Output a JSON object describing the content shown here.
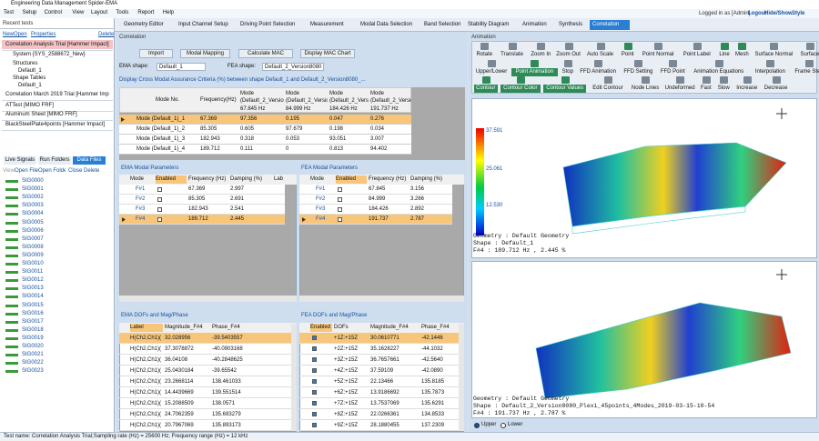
{
  "window": {
    "title": "Engineering Data Management Spider-EMA"
  },
  "menu": [
    "Test",
    "Setup",
    "Control",
    "View",
    "Layout",
    "Tools",
    "Report",
    "Help"
  ],
  "tabs": [
    "Geometry Editor",
    "Input Channel Setup",
    "Driving Point Selection",
    "Measurement",
    "Modal Data Selection",
    "Band Selection",
    "Stability Diagram",
    "Animation",
    "Synthesis",
    "ODS",
    "Correlation"
  ],
  "user": {
    "logged_in": "Logged in as [Admin]",
    "buttons": [
      "Logout",
      "Hide/Show",
      "Style"
    ]
  },
  "left": {
    "header": "Recent tests",
    "actions": [
      "New",
      "Open",
      "Properties",
      "Delete"
    ],
    "tree": [
      "Correlation Analysis Trial [Hammer Impact]",
      "System {SYS_2588672_New}",
      "Structures",
      "Default_1",
      "Shape Tables",
      "Default_1",
      "Correlation March 2019 Trial [Hammer Impact]",
      "ATTest [MIMO FRF]",
      "Aluminum Sheet [MIMO FRF]",
      "BlackSteelPlate4points [Hammer Impact]"
    ],
    "tabs": [
      "Live Signals",
      "Run Folders",
      "Data Files"
    ],
    "file_actions": [
      "View",
      "Open File",
      "Open Folder",
      "Close",
      "Delete"
    ],
    "signals": [
      "SIG0000",
      "SIG0001",
      "SIG0002",
      "SIG0003",
      "SIG0004",
      "SIG0005",
      "SIG0006",
      "SIG0007",
      "SIG0008",
      "SIG0009",
      "SIG0010",
      "SIG0011",
      "SIG0012",
      "SIG0013",
      "SIG0014",
      "SIG0015",
      "SIG0016",
      "SIG0017",
      "SIG0018",
      "SIG0019",
      "SIG0020",
      "SIG0021",
      "SIG0022",
      "SIG0023"
    ]
  },
  "correlation": {
    "header": "Correlation",
    "buttons": [
      "Import",
      "Modal Mapping",
      "Calculate MAC",
      "Display MAC Chart"
    ],
    "ema_shape_label": "EMA shape:",
    "ema_shape": "Default_1",
    "fea_shape_label": "FEA shape:",
    "fea_shape": "Default_2_Version8080",
    "mac_caption": "Display Cross Modal Assurance Criteria (%) between shape Default_1 and Default_2_Version8080_...",
    "mac_table": {
      "columns": [
        "Mode No.",
        "Frequency(Hz)",
        "Mode (Default_2_Version...",
        "Mode (Default_2_Versio...",
        "Mode (Default_2_Version...",
        "Mode (Default_2_Version..."
      ],
      "subheader": [
        "67.845 Hz",
        "84.999 Hz",
        "184.426 Hz",
        "191.737 Hz"
      ],
      "rows": [
        [
          "Mode (Default_1)_1",
          "67.369",
          "97.356",
          "0.195",
          "0.047",
          "0.276"
        ],
        [
          "Mode (Default_1)_2",
          "85.305",
          "0.605",
          "97.679",
          "0.198",
          "0.034"
        ],
        [
          "Mode (Default_1)_3",
          "182.943",
          "0.318",
          "0.053",
          "93.051",
          "3.007"
        ],
        [
          "Mode (Default_1)_4",
          "189.712",
          "0.111",
          "0",
          "0.813",
          "94.402"
        ]
      ]
    },
    "ema_params": {
      "title": "EMA Modal Parameters",
      "columns": [
        "Mode",
        "Enabled",
        "Frequency (Hz)",
        "Damping (%)",
        "Lab"
      ],
      "rows": [
        [
          "F#1",
          "67.369",
          "2.997"
        ],
        [
          "F#2",
          "85.305",
          "2.691"
        ],
        [
          "F#3",
          "182.943",
          "2.541"
        ],
        [
          "F#4",
          "189.712",
          "2.445"
        ]
      ]
    },
    "fea_params": {
      "title": "FEA Modal Parameters",
      "columns": [
        "Mode",
        "Enabled",
        "Frequency (Hz)",
        "Damping (%)"
      ],
      "rows": [
        [
          "F#1",
          "67.845",
          "3.156"
        ],
        [
          "F#2",
          "84.999",
          "3.266"
        ],
        [
          "F#3",
          "184.426",
          "2.892"
        ],
        [
          "F#4",
          "191.737",
          "2.787"
        ]
      ]
    },
    "ema_dofs": {
      "title": "EMA DOFs and Mag/Phase",
      "columns": [
        "Label",
        "Magnitude_F#4",
        "Phase_F#4"
      ],
      "rows": [
        [
          "H(Ch2,Ch1)(+15...",
          "32.028956",
          "-39.5403557"
        ],
        [
          "H(Ch2,Ch1)(+15...",
          "37.3078872",
          "-40.0903168"
        ],
        [
          "H(Ch2,Ch1)(+15...",
          "36.04108",
          "-40.2848625"
        ],
        [
          "H(Ch2,Ch1)(+15...",
          "25.0430184",
          "-39.65542"
        ],
        [
          "H(Ch2,Ch1)(+15...",
          "23.2668114",
          "138.461033"
        ],
        [
          "H(Ch2,Ch1)(+15...",
          "14.4439669",
          "139.551514"
        ],
        [
          "H(Ch2,Ch1)(+15...",
          "15.2088509",
          "138.0571"
        ],
        [
          "H(Ch2,Ch1)(+15...",
          "24.7062359",
          "135.693279"
        ],
        [
          "H(Ch2,Ch1)(+15...",
          "20.7967069",
          "135.893173"
        ]
      ]
    },
    "fea_dofs": {
      "title": "FEA DOFs and Mag/Phase",
      "columns": [
        "Enabled",
        "DOFs",
        "Magnitude_F#4",
        "Phase_F#4"
      ],
      "rows": [
        [
          "+1Z:+15Z",
          "30.0610771",
          "-42.1446"
        ],
        [
          "+2Z:+15Z",
          "35.1628227",
          "-44.1032"
        ],
        [
          "+3Z:+15Z",
          "36.7657661",
          "-42.5640"
        ],
        [
          "+4Z:+15Z",
          "37.59109",
          "-42.0890"
        ],
        [
          "+5Z:+15Z",
          "22.13466",
          "135.8185"
        ],
        [
          "+6Z:+15Z",
          "13.9186692",
          "135.7873"
        ],
        [
          "+7Z:+15Z",
          "13.7537069",
          "135.6291"
        ],
        [
          "+8Z:+15Z",
          "22.0266361",
          "134.8533"
        ],
        [
          "+9Z:+15Z",
          "28.1880455",
          "137.2309"
        ]
      ]
    }
  },
  "animation": {
    "header": "Animation",
    "toolbar": [
      [
        "Rotate",
        "Translate",
        "Zoom In",
        "Zoom Out",
        "Auto Scale",
        "Point",
        "Point Normal",
        "Point Label",
        "Line",
        "Mesh",
        "Surface Normal",
        "Surface",
        "Origin"
      ],
      [
        "Upper/Lower",
        "Point Animation",
        "Stop",
        "FFD Animation",
        "FFD Setting",
        "FFD Point",
        "Animation Equations",
        "Interpolation",
        "Frame Step",
        "Previous Frame"
      ],
      [
        "Contour",
        "Contour Color",
        "Contour Values",
        "Edit Contour",
        "Node Lines",
        "Undeformed",
        "Fast",
        "Slow",
        "Increase",
        "Decrease"
      ]
    ],
    "scale": [
      "37.591",
      "25.061",
      "12.530"
    ],
    "upper": [
      "Geometry : Default Geometry",
      "Shape : Default_1",
      "F#4 : 189.712 Hz , 2.445 %"
    ],
    "lower": [
      "Geometry : Default Geometry",
      "Shape : Default_2_Version8080_Plexi_45points_4Modes_2019-03-15-10-54",
      "F#4 : 191.737 Hz , 2.787 %"
    ],
    "radios": [
      "Upper",
      "Lower"
    ]
  },
  "status": "Test name: Correlation Analysis Trial;Sampling rate (Hz) = 25600 Hz; Frequency range (Hz) = 12 kHz"
}
